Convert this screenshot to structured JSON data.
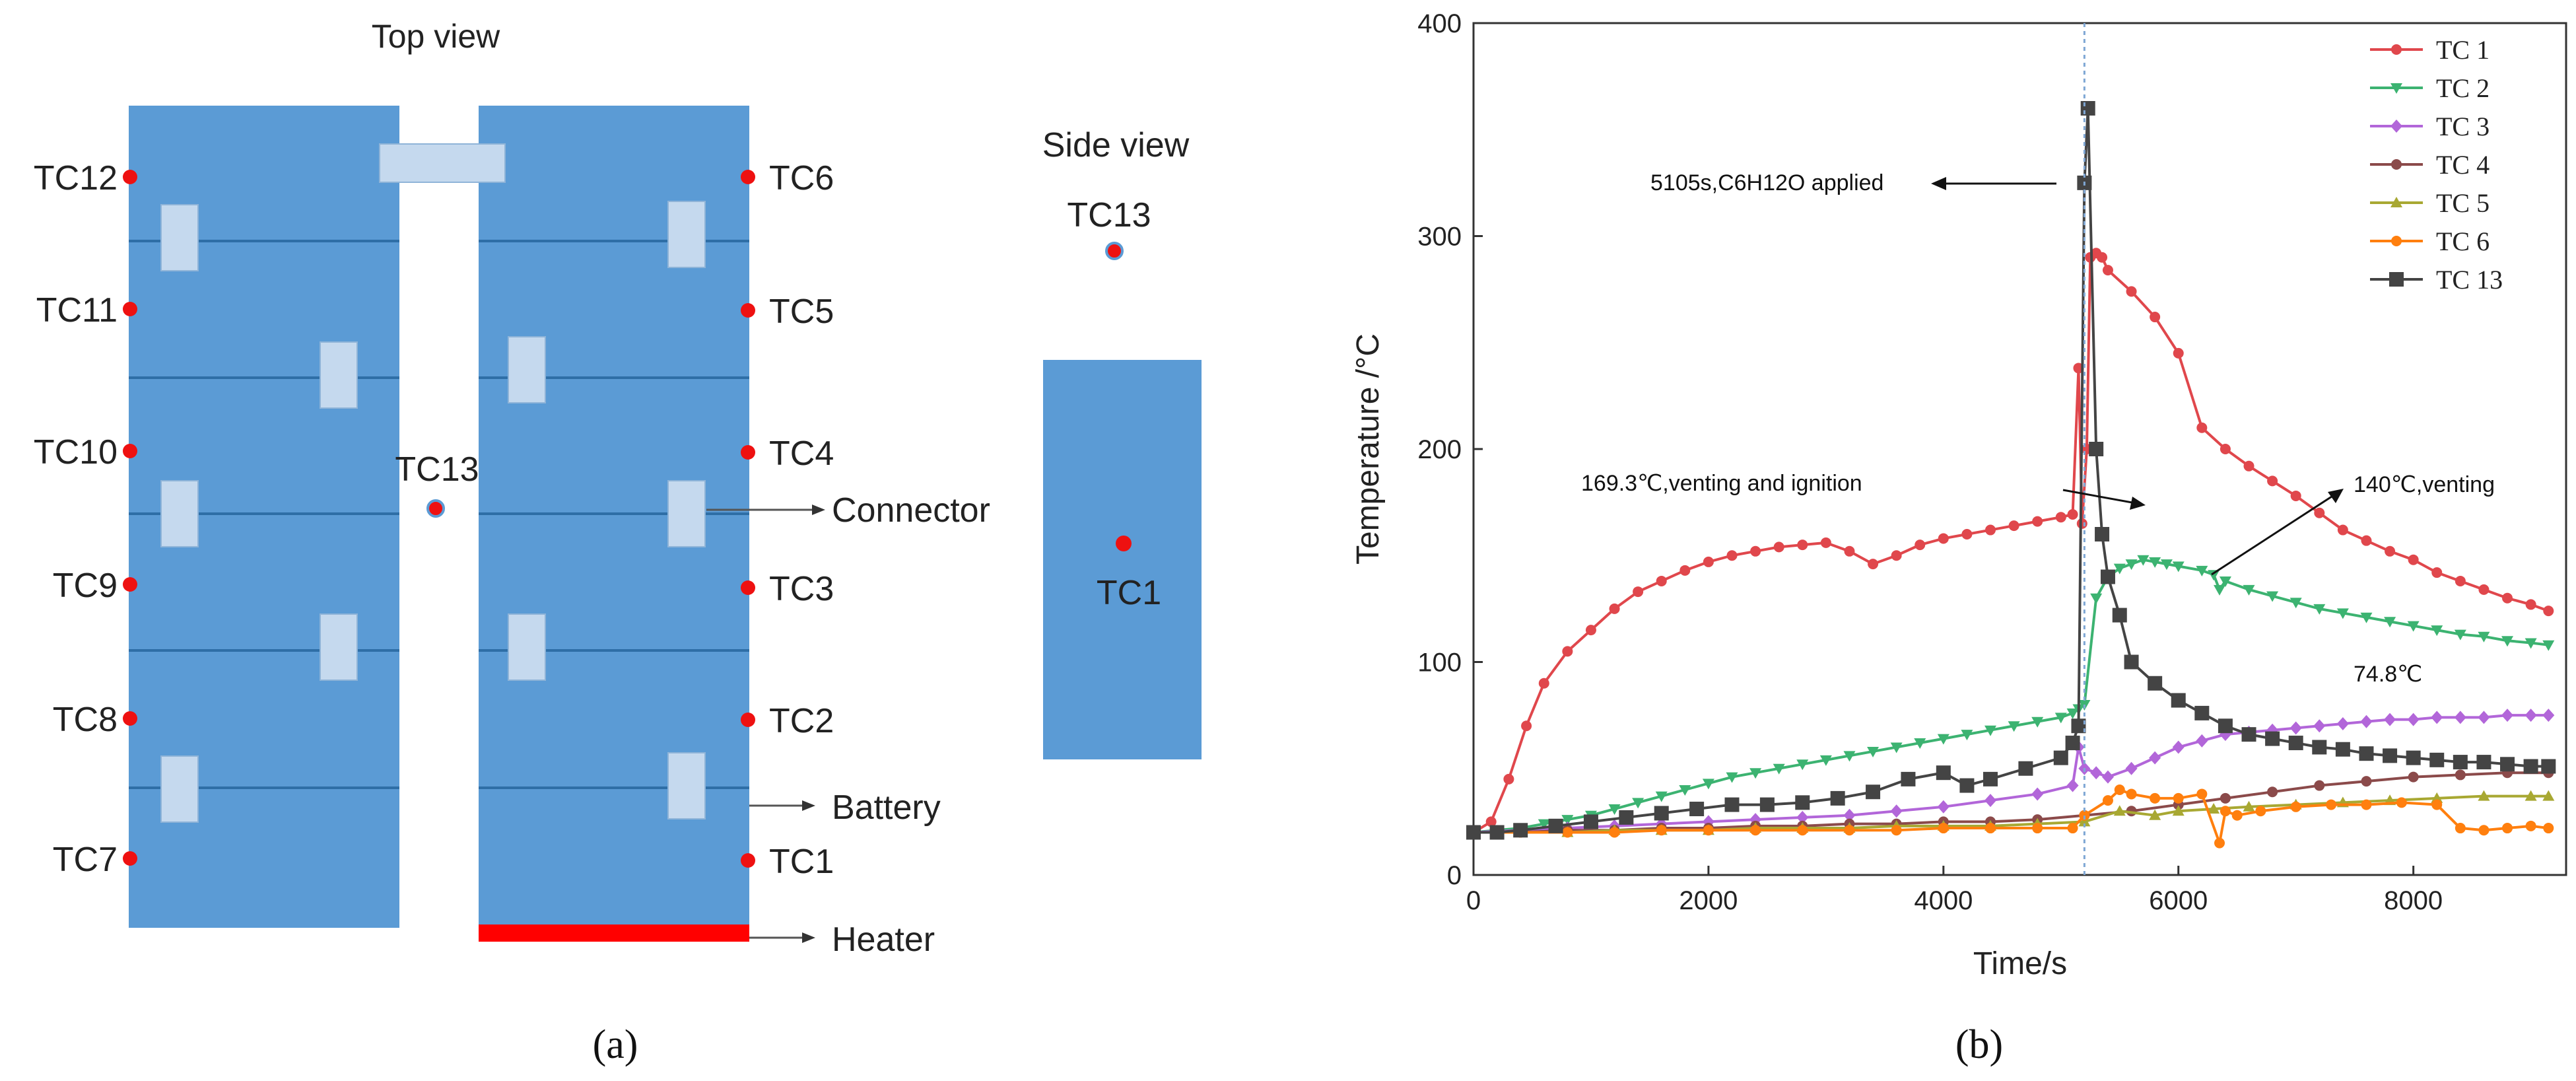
{
  "panel_a": {
    "top_view_label": "Top view",
    "side_view_label": "Side view",
    "caption": "(a)",
    "sensors": [
      "TC12",
      "TC11",
      "TC10",
      "TC9",
      "TC8",
      "TC7",
      "TC6",
      "TC5",
      "TC4",
      "TC3",
      "TC2",
      "TC1",
      "TC13"
    ],
    "middle_sensor": "TC13",
    "side_sensors": [
      "TC13",
      "TC1"
    ],
    "callouts": [
      "Connector",
      "Battery",
      "Heater"
    ],
    "colors": {
      "cell": "#5b9bd5",
      "connector": "#c5d9ee",
      "sensor": "#ee1111",
      "heater": "#ff0000",
      "line": "#2e6ea6"
    }
  },
  "panel_b": {
    "caption": "(b)",
    "chart_data": {
      "type": "line",
      "title": "",
      "xlabel": "Time/s",
      "ylabel": "Temperature /°C",
      "xlim": [
        0,
        9300
      ],
      "ylim": [
        0,
        400
      ],
      "xticks": [
        0,
        2000,
        4000,
        6000,
        8000
      ],
      "yticks": [
        0,
        100,
        200,
        300,
        400
      ],
      "legend": "top-right",
      "event_line_x": 5200,
      "series": [
        {
          "name": "TC 1",
          "color": "#e0474c",
          "marker": "circle",
          "x": [
            0,
            150,
            300,
            450,
            600,
            800,
            1000,
            1200,
            1400,
            1600,
            1800,
            2000,
            2200,
            2400,
            2600,
            2800,
            3000,
            3200,
            3400,
            3600,
            3800,
            4000,
            4200,
            4400,
            4600,
            4800,
            5000,
            5100,
            5150,
            5180,
            5220,
            5250,
            5300,
            5350,
            5400,
            5600,
            5800,
            6000,
            6200,
            6400,
            6600,
            6800,
            7000,
            7200,
            7400,
            7600,
            7800,
            8000,
            8200,
            8400,
            8600,
            8800,
            9000,
            9150
          ],
          "y": [
            20,
            25,
            45,
            70,
            90,
            105,
            115,
            125,
            133,
            138,
            143,
            147,
            150,
            152,
            154,
            155,
            156,
            152,
            146,
            150,
            155,
            158,
            160,
            162,
            164,
            166,
            168,
            169.3,
            238,
            165,
            200,
            290,
            292,
            290,
            284,
            274,
            262,
            245,
            210,
            200,
            192,
            185,
            178,
            170,
            162,
            157,
            152,
            148,
            142,
            138,
            134,
            130,
            127,
            124
          ]
        },
        {
          "name": "TC 2",
          "color": "#3cb371",
          "marker": "tri-down",
          "x": [
            0,
            200,
            400,
            600,
            800,
            1000,
            1200,
            1400,
            1600,
            1800,
            2000,
            2200,
            2400,
            2600,
            2800,
            3000,
            3200,
            3400,
            3600,
            3800,
            4000,
            4200,
            4400,
            4600,
            4800,
            5000,
            5100,
            5150,
            5200,
            5300,
            5400,
            5500,
            5600,
            5700,
            5800,
            5900,
            6000,
            6200,
            6300,
            6350,
            6400,
            6600,
            6800,
            7000,
            7200,
            7400,
            7600,
            7800,
            8000,
            8200,
            8400,
            8600,
            8800,
            9000,
            9150
          ],
          "y": [
            20,
            21,
            22,
            24,
            26,
            28,
            31,
            34,
            37,
            40,
            43,
            46,
            48,
            50,
            52,
            54,
            56,
            58,
            60,
            62,
            64,
            66,
            68,
            70,
            72,
            74,
            76,
            78,
            80,
            130,
            140,
            144,
            146,
            148,
            147,
            146,
            145,
            143,
            141,
            134,
            138,
            134,
            131,
            128,
            125,
            123,
            121,
            119,
            117,
            115,
            113,
            112,
            110,
            109,
            108
          ]
        },
        {
          "name": "TC 3",
          "color": "#b266d9",
          "marker": "diamond",
          "x": [
            0,
            400,
            800,
            1200,
            1600,
            2000,
            2400,
            2800,
            3200,
            3600,
            4000,
            4400,
            4800,
            5100,
            5150,
            5200,
            5300,
            5400,
            5600,
            5800,
            6000,
            6200,
            6400,
            6600,
            6800,
            7000,
            7200,
            7400,
            7600,
            7800,
            8000,
            8200,
            8400,
            8600,
            8800,
            9000,
            9150
          ],
          "y": [
            20,
            21,
            22,
            23,
            24,
            25,
            26,
            27,
            28,
            30,
            32,
            35,
            38,
            42,
            60,
            50,
            48,
            46,
            50,
            55,
            60,
            63,
            66,
            67,
            68,
            69,
            70,
            71,
            72,
            73,
            73,
            74,
            74,
            74,
            75,
            75,
            75
          ]
        },
        {
          "name": "TC 4",
          "color": "#8b4a4a",
          "marker": "circle",
          "x": [
            0,
            400,
            800,
            1200,
            1600,
            2000,
            2400,
            2800,
            3200,
            3600,
            4000,
            4400,
            4800,
            5200,
            5600,
            6000,
            6400,
            6800,
            7200,
            7600,
            8000,
            8400,
            8800,
            9150
          ],
          "y": [
            20,
            20,
            21,
            21,
            22,
            22,
            23,
            23,
            24,
            24,
            25,
            25,
            26,
            28,
            30,
            33,
            36,
            39,
            42,
            44,
            46,
            47,
            48,
            48
          ]
        },
        {
          "name": "TC 5",
          "color": "#a8a832",
          "marker": "tri-up",
          "x": [
            0,
            400,
            800,
            1200,
            1600,
            2000,
            2400,
            2800,
            3200,
            3600,
            4000,
            4400,
            4800,
            5200,
            5500,
            5800,
            6000,
            6300,
            6600,
            7000,
            7400,
            7800,
            8200,
            8600,
            9000,
            9150
          ],
          "y": [
            20,
            20,
            20,
            21,
            21,
            21,
            22,
            22,
            22,
            23,
            23,
            23,
            24,
            25,
            30,
            28,
            30,
            31,
            32,
            33,
            34,
            35,
            36,
            37,
            37,
            37
          ]
        },
        {
          "name": "TC 6",
          "color": "#ff7f0e",
          "marker": "circle",
          "x": [
            0,
            400,
            800,
            1200,
            1600,
            2000,
            2400,
            2800,
            3200,
            3600,
            4000,
            4400,
            4800,
            5100,
            5200,
            5400,
            5500,
            5600,
            5800,
            6000,
            6200,
            6350,
            6400,
            6500,
            6700,
            7000,
            7300,
            7600,
            7900,
            8200,
            8400,
            8600,
            8800,
            9000,
            9150
          ],
          "y": [
            20,
            20,
            20,
            20,
            21,
            21,
            21,
            21,
            21,
            21,
            22,
            22,
            22,
            22,
            28,
            35,
            40,
            38,
            36,
            36,
            38,
            15,
            30,
            28,
            30,
            32,
            33,
            33,
            34,
            33,
            22,
            21,
            22,
            23,
            22
          ]
        },
        {
          "name": "TC 13",
          "color": "#444444",
          "marker": "square",
          "x": [
            0,
            200,
            400,
            700,
            1000,
            1300,
            1600,
            1900,
            2200,
            2500,
            2800,
            3100,
            3400,
            3700,
            4000,
            4200,
            4400,
            4700,
            5000,
            5100,
            5150,
            5200,
            5230,
            5300,
            5350,
            5400,
            5500,
            5600,
            5800,
            6000,
            6200,
            6400,
            6600,
            6800,
            7000,
            7200,
            7400,
            7600,
            7800,
            8000,
            8200,
            8400,
            8600,
            8800,
            9000,
            9150
          ],
          "y": [
            20,
            20,
            21,
            23,
            25,
            27,
            29,
            31,
            33,
            33,
            34,
            36,
            39,
            45,
            48,
            42,
            45,
            50,
            55,
            62,
            70,
            325,
            360,
            200,
            160,
            140,
            122,
            100,
            90,
            82,
            76,
            70,
            66,
            64,
            62,
            60,
            59,
            57,
            56,
            55,
            54,
            53,
            53,
            52,
            51,
            51
          ]
        }
      ],
      "annotations": [
        {
          "text": "5105s,C6H12O applied"
        },
        {
          "text": "169.3℃,venting and ignition"
        },
        {
          "text": "140℃,venting"
        },
        {
          "text": "74.8℃"
        }
      ]
    }
  }
}
